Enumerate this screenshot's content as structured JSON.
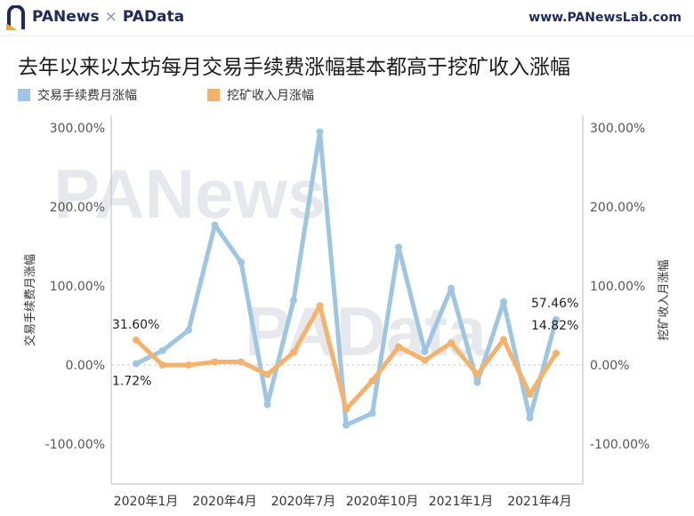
{
  "header": {
    "brand_left": "PANews",
    "brand_sep": "×",
    "brand_right": "PAData",
    "website": "www.PANewsLab.com"
  },
  "title": "去年以来以太坊每月交易手续费涨幅基本都高于挖矿收入涨幅",
  "watermark": [
    "PANews",
    "PAData"
  ],
  "chart_data": {
    "type": "line",
    "x": [
      "2020-01",
      "2020-02",
      "2020-03",
      "2020-04",
      "2020-05",
      "2020-06",
      "2020-07",
      "2020-08",
      "2020-09",
      "2020-10",
      "2020-11",
      "2020-12",
      "2021-01",
      "2021-02",
      "2021-03",
      "2021-04",
      "2021-05"
    ],
    "x_tick_labels": [
      "2020年1月",
      "2020年4月",
      "2020年7月",
      "2020年10月",
      "2021年1月",
      "2021年4月"
    ],
    "series": [
      {
        "name": "交易手续费月涨幅",
        "axis": "left",
        "color": "#9ec6e3",
        "values": [
          1.72,
          18,
          44,
          177,
          130,
          -50,
          82,
          295,
          -76,
          -61,
          149,
          17,
          97,
          -22,
          80,
          -67,
          57.46
        ]
      },
      {
        "name": "挖矿收入月涨幅",
        "axis": "right",
        "color": "#f5b26b",
        "values": [
          31.6,
          0,
          0,
          4,
          4,
          -12,
          16,
          75,
          -56,
          -20,
          23,
          6,
          28,
          -12,
          32,
          -37,
          14.82
        ]
      }
    ],
    "ylabel_left": "交易手续费月涨幅",
    "ylabel_right": "挖矿收入月涨幅",
    "ylim": [
      -100,
      300
    ],
    "y_ticks": [
      "-100.00%",
      "0.00%",
      "100.00%",
      "200.00%",
      "300.00%"
    ],
    "grid": false,
    "zero_line": "dashed",
    "legend": "top-left",
    "annotations": [
      {
        "label": "31.60%",
        "series": 1,
        "index": 0
      },
      {
        "label": "1.72%",
        "series": 0,
        "index": 0
      },
      {
        "label": "57.46%",
        "series": 0,
        "index": 16
      },
      {
        "label": "14.82%",
        "series": 1,
        "index": 16
      }
    ]
  },
  "colors": {
    "fee": "#9ec6e3",
    "mining": "#f5b26b",
    "brand": "#1d2a5c",
    "axis": "#bbbbbb"
  }
}
